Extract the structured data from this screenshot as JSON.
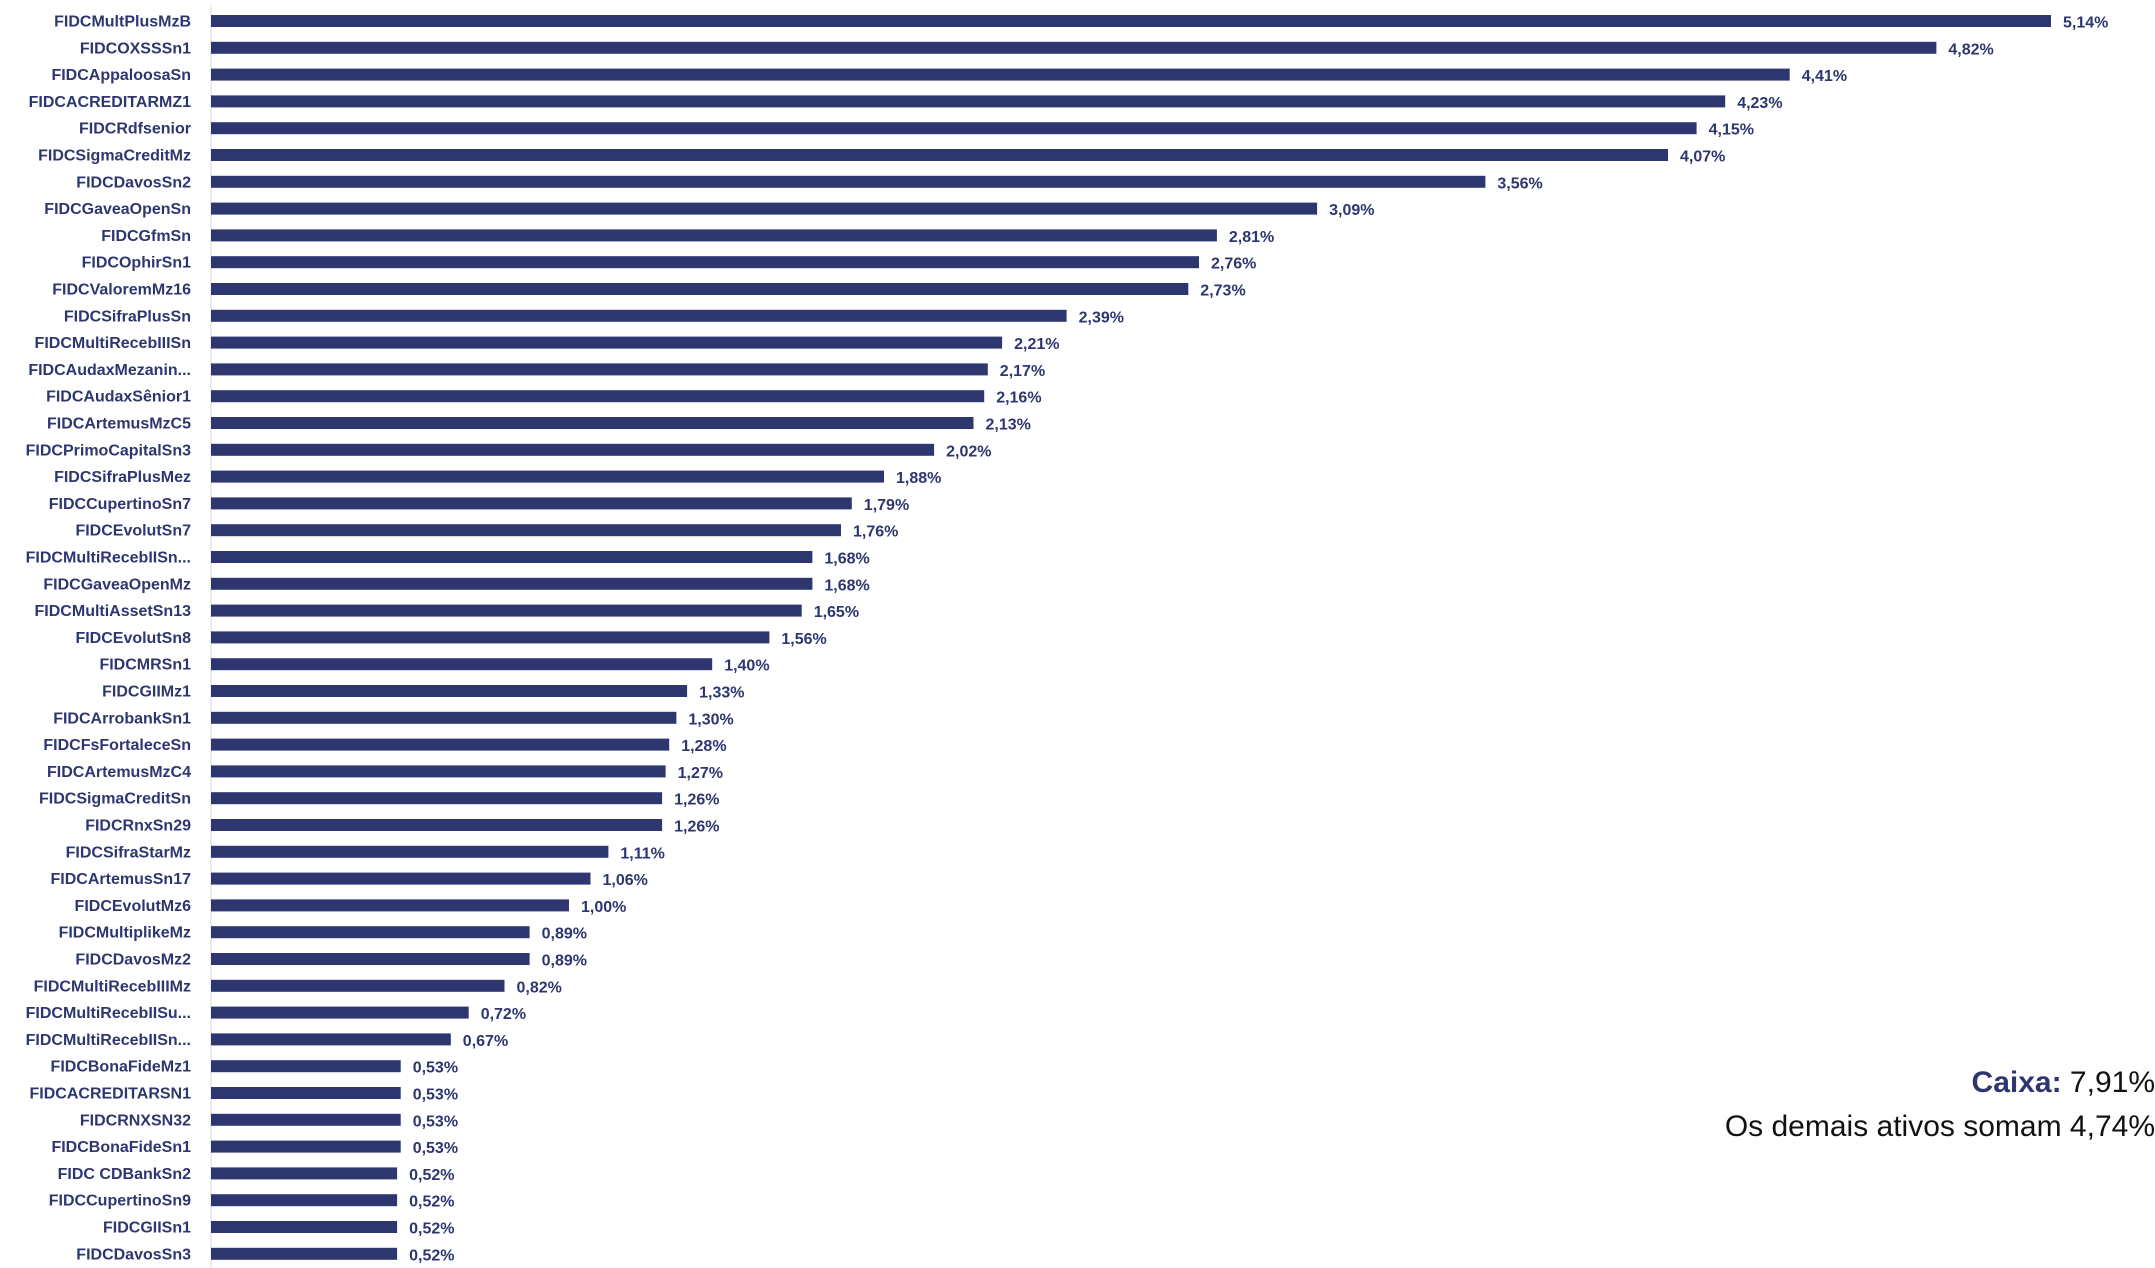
{
  "colors": {
    "bar": "#2e3670",
    "axis": "#d9d9d9",
    "text_dark": "#111111"
  },
  "chart_data": {
    "type": "bar",
    "orientation": "horizontal",
    "categories": [
      "FIDCMultPlusMzB",
      "FIDCOXSSSn1",
      "FIDCAppaloosaSn",
      "FIDCACREDITARMZ1",
      "FIDCRdfsenior",
      "FIDCSigmaCreditMz",
      "FIDCDavosSn2",
      "FIDCGaveaOpenSn",
      "FIDCGfmSn",
      "FIDCOphirSn1",
      "FIDCValoremMz16",
      "FIDCSifraPlusSn",
      "FIDCMultiRecebIIISn",
      "FIDCAudaxMezanin...",
      "FIDCAudaxSênior1",
      "FIDCArtemusMzC5",
      "FIDCPrimoCapitalSn3",
      "FIDCSifraPlusMez",
      "FIDCCupertinoSn7",
      "FIDCEvolutSn7",
      "FIDCMultiRecebIISn...",
      "FIDCGaveaOpenMz",
      "FIDCMultiAssetSn13",
      "FIDCEvolutSn8",
      "FIDCMRSn1",
      "FIDCGIIMz1",
      "FIDCArrobankSn1",
      "FIDCFsFortaleceSn",
      "FIDCArtemusMzC4",
      "FIDCSigmaCreditSn",
      "FIDCRnxSn29",
      "FIDCSifraStarMz",
      "FIDCArtemusSn17",
      "FIDCEvolutMz6",
      "FIDCMultiplikeMz",
      "FIDCDavosMz2",
      "FIDCMultiRecebIIIMz",
      "FIDCMultiRecebIISu...",
      "FIDCMultiRecebIISn...",
      "FIDCBonaFideMz1",
      "FIDCACREDITARSN1",
      "FIDCRNXSN32",
      "FIDCBonaFideSn1",
      "FIDC CDBankSn2",
      "FIDCCupertinoSn9",
      "FIDCGIISn1",
      "FIDCDavosSn3"
    ],
    "values": [
      5.14,
      4.82,
      4.41,
      4.23,
      4.15,
      4.07,
      3.56,
      3.09,
      2.81,
      2.76,
      2.73,
      2.39,
      2.21,
      2.17,
      2.16,
      2.13,
      2.02,
      1.88,
      1.79,
      1.76,
      1.68,
      1.68,
      1.65,
      1.56,
      1.4,
      1.33,
      1.3,
      1.28,
      1.27,
      1.26,
      1.26,
      1.11,
      1.06,
      1.0,
      0.89,
      0.89,
      0.82,
      0.72,
      0.67,
      0.53,
      0.53,
      0.53,
      0.53,
      0.52,
      0.52,
      0.52,
      0.52
    ],
    "value_labels": [
      "5,14%",
      "4,82%",
      "4,41%",
      "4,23%",
      "4,15%",
      "4,07%",
      "3,56%",
      "3,09%",
      "2,81%",
      "2,76%",
      "2,73%",
      "2,39%",
      "2,21%",
      "2,17%",
      "2,16%",
      "2,13%",
      "2,02%",
      "1,88%",
      "1,79%",
      "1,76%",
      "1,68%",
      "1,68%",
      "1,65%",
      "1,56%",
      "1,40%",
      "1,33%",
      "1,30%",
      "1,28%",
      "1,27%",
      "1,26%",
      "1,26%",
      "1,11%",
      "1,06%",
      "1,00%",
      "0,89%",
      "0,89%",
      "0,82%",
      "0,72%",
      "0,67%",
      "0,53%",
      "0,53%",
      "0,53%",
      "0,53%",
      "0,52%",
      "0,52%",
      "0,52%",
      "0,52%"
    ],
    "unit": "%",
    "xlim": [
      0,
      5.14
    ],
    "grid": false,
    "legend": "none",
    "title": "",
    "xlabel": "",
    "ylabel": ""
  },
  "notes": {
    "caixa_label": "Caixa:",
    "caixa_value": " 7,91%",
    "others_text": "Os demais ativos somam 4,74%"
  }
}
